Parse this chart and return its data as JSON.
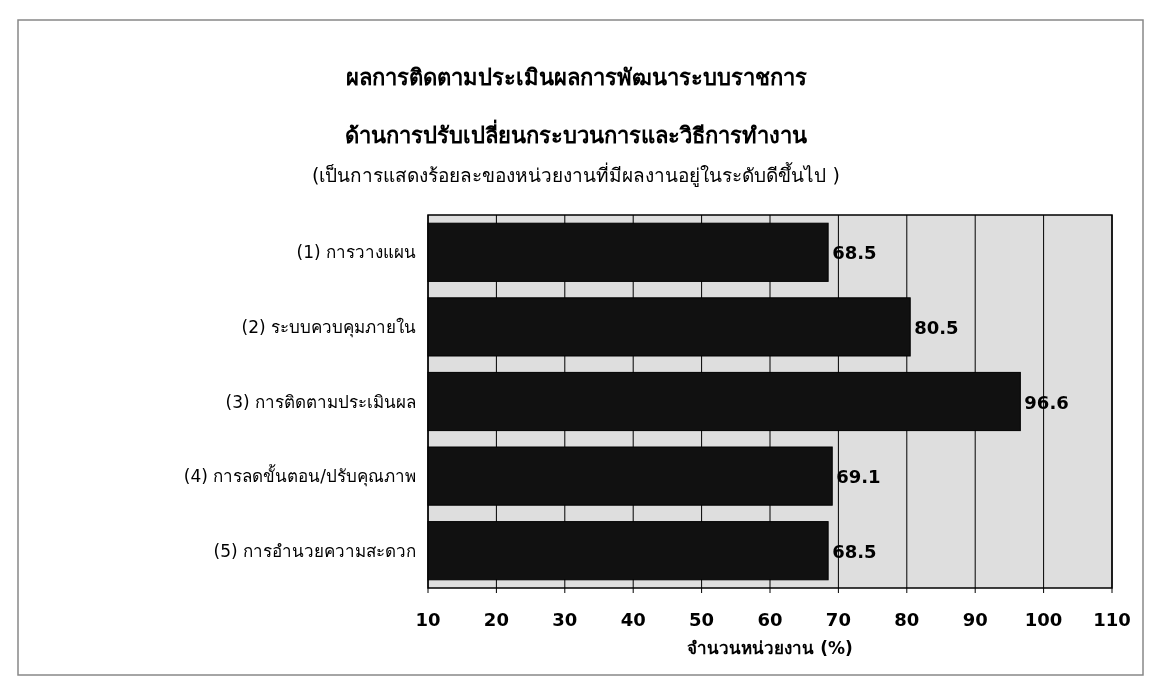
{
  "chart_data": {
    "type": "bar",
    "orientation": "horizontal",
    "title": "ผลการติดตามประเมินผลการพัฒนาระบบราชการ\nด้านการปรับเปลี่ยนกระบวนการและวิธีการทำงาน",
    "subtitle": "(เป็นการแสดงร้อยละของหน่วยงานที่มีผลงานอยู่ในระดับดีขึ้นไป  )",
    "xlabel": "จำนวนหน่วยงาน (%)",
    "categories": [
      "(1) การวางแผน",
      "(2) ระบบควบคุมภายใน",
      "(3) การติดตามประเมินผล",
      "(4) การลดขั้นตอน/ปรับคุณภาพ",
      "(5) การอำนวยความสะดวก"
    ],
    "values": [
      68.5,
      80.5,
      96.6,
      69.1,
      68.5
    ],
    "color": "#111111",
    "xlim": [
      10,
      110
    ],
    "xticks": [
      10,
      20,
      30,
      40,
      50,
      60,
      70,
      80,
      90,
      100,
      110
    ],
    "grid": "x",
    "data_labels": true
  }
}
